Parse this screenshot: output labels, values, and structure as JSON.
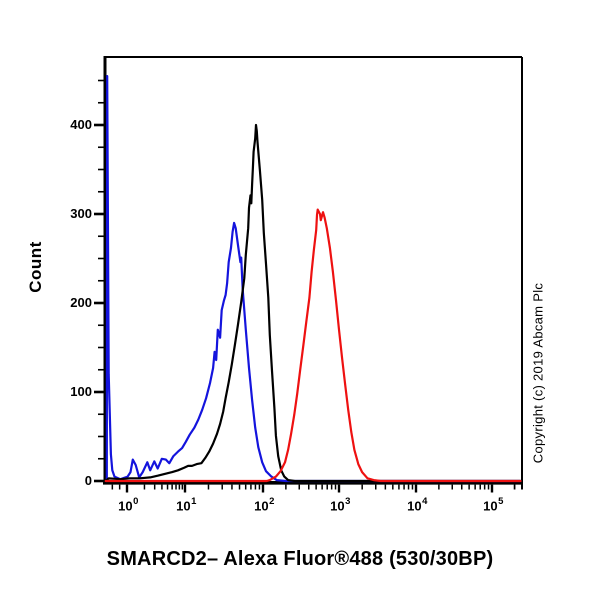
{
  "figure": {
    "copyright": "Copyright (c) 2019 Abcam Plc"
  },
  "chart_data": {
    "type": "line",
    "subtype": "flow-cytometry-histogram",
    "title": "SMARCD2– Alexa Fluor®488 (530/30BP)",
    "ylabel": "Count",
    "xscale": "log10",
    "xlim_log10": [
      -0.3,
      5.4
    ],
    "ylim": [
      0,
      476
    ],
    "grid": false,
    "legend": "none",
    "x_decade_exponents": [
      0,
      1,
      2,
      3,
      4,
      5
    ],
    "x_tick_base": "10",
    "y_major_ticks": [
      0,
      100,
      200,
      300,
      400
    ],
    "y_minor_step": 25,
    "y_minor_max": 450,
    "series": [
      {
        "name": "blue_curve",
        "color": "#1414dd",
        "points": [
          [
            -0.275,
            0
          ],
          [
            -0.27,
            455
          ],
          [
            -0.26,
            300
          ],
          [
            -0.25,
            120
          ],
          [
            -0.22,
            30
          ],
          [
            -0.2,
            12
          ],
          [
            -0.17,
            5
          ],
          [
            -0.09,
            2
          ],
          [
            0.01,
            5
          ],
          [
            0.06,
            10
          ],
          [
            0.1,
            24
          ],
          [
            0.15,
            18
          ],
          [
            0.21,
            4
          ],
          [
            0.27,
            10
          ],
          [
            0.35,
            21
          ],
          [
            0.4,
            12
          ],
          [
            0.47,
            22
          ],
          [
            0.53,
            14
          ],
          [
            0.6,
            25
          ],
          [
            0.67,
            24
          ],
          [
            0.73,
            20
          ],
          [
            0.8,
            28
          ],
          [
            0.88,
            33
          ],
          [
            0.95,
            37
          ],
          [
            1.01,
            44
          ],
          [
            1.06,
            52
          ],
          [
            1.12,
            60
          ],
          [
            1.17,
            69
          ],
          [
            1.22,
            80
          ],
          [
            1.27,
            93
          ],
          [
            1.32,
            110
          ],
          [
            1.36,
            127
          ],
          [
            1.38,
            145
          ],
          [
            1.4,
            136
          ],
          [
            1.42,
            170
          ],
          [
            1.45,
            161
          ],
          [
            1.47,
            192
          ],
          [
            1.5,
            203
          ],
          [
            1.52,
            209
          ],
          [
            1.54,
            222
          ],
          [
            1.56,
            246
          ],
          [
            1.59,
            262
          ],
          [
            1.61,
            280
          ],
          [
            1.63,
            290
          ],
          [
            1.65,
            284
          ],
          [
            1.68,
            265
          ],
          [
            1.71,
            246
          ],
          [
            1.72,
            251
          ],
          [
            1.74,
            215
          ],
          [
            1.78,
            170
          ],
          [
            1.82,
            127
          ],
          [
            1.86,
            91
          ],
          [
            1.9,
            60
          ],
          [
            1.94,
            38
          ],
          [
            1.99,
            21
          ],
          [
            2.04,
            11
          ],
          [
            2.11,
            5
          ],
          [
            2.18,
            1
          ],
          [
            2.3,
            0
          ],
          [
            5.38,
            0
          ]
        ]
      },
      {
        "name": "black_curve",
        "color": "#000000",
        "points": [
          [
            -0.29,
            0
          ],
          [
            -0.25,
            3
          ],
          [
            -0.09,
            2
          ],
          [
            0.05,
            3
          ],
          [
            0.22,
            3
          ],
          [
            0.4,
            4
          ],
          [
            0.53,
            6
          ],
          [
            0.65,
            8
          ],
          [
            0.78,
            10
          ],
          [
            0.88,
            12
          ],
          [
            0.99,
            15
          ],
          [
            1.04,
            17
          ],
          [
            1.09,
            17
          ],
          [
            1.15,
            19
          ],
          [
            1.21,
            20
          ],
          [
            1.26,
            26
          ],
          [
            1.31,
            33
          ],
          [
            1.36,
            42
          ],
          [
            1.41,
            53
          ],
          [
            1.45,
            64
          ],
          [
            1.49,
            78
          ],
          [
            1.52,
            93
          ],
          [
            1.56,
            111
          ],
          [
            1.6,
            131
          ],
          [
            1.64,
            153
          ],
          [
            1.68,
            176
          ],
          [
            1.72,
            201
          ],
          [
            1.76,
            228
          ],
          [
            1.78,
            254
          ],
          [
            1.81,
            284
          ],
          [
            1.82,
            307
          ],
          [
            1.84,
            321
          ],
          [
            1.85,
            312
          ],
          [
            1.86,
            333
          ],
          [
            1.87,
            352
          ],
          [
            1.88,
            370
          ],
          [
            1.9,
            385
          ],
          [
            1.91,
            400
          ],
          [
            1.92,
            393
          ],
          [
            1.93,
            381
          ],
          [
            1.96,
            349
          ],
          [
            1.99,
            316
          ],
          [
            2.01,
            279
          ],
          [
            2.04,
            244
          ],
          [
            2.07,
            206
          ],
          [
            2.09,
            164
          ],
          [
            2.12,
            122
          ],
          [
            2.15,
            82
          ],
          [
            2.17,
            51
          ],
          [
            2.2,
            28
          ],
          [
            2.24,
            12
          ],
          [
            2.28,
            5
          ],
          [
            2.33,
            1
          ],
          [
            2.42,
            0
          ],
          [
            5.38,
            0
          ]
        ]
      },
      {
        "name": "red_curve",
        "color": "#ee1111",
        "points": [
          [
            -0.29,
            0
          ],
          [
            2.05,
            0
          ],
          [
            2.09,
            1
          ],
          [
            2.17,
            5
          ],
          [
            2.23,
            11
          ],
          [
            2.29,
            21
          ],
          [
            2.33,
            35
          ],
          [
            2.37,
            53
          ],
          [
            2.41,
            74
          ],
          [
            2.45,
            98
          ],
          [
            2.49,
            125
          ],
          [
            2.53,
            152
          ],
          [
            2.57,
            179
          ],
          [
            2.61,
            206
          ],
          [
            2.64,
            235
          ],
          [
            2.67,
            260
          ],
          [
            2.7,
            282
          ],
          [
            2.71,
            299
          ],
          [
            2.72,
            305
          ],
          [
            2.75,
            300
          ],
          [
            2.76,
            293
          ],
          [
            2.79,
            302
          ],
          [
            2.81,
            296
          ],
          [
            2.84,
            284
          ],
          [
            2.88,
            262
          ],
          [
            2.92,
            235
          ],
          [
            2.96,
            203
          ],
          [
            3.0,
            170
          ],
          [
            3.04,
            138
          ],
          [
            3.08,
            108
          ],
          [
            3.12,
            80
          ],
          [
            3.16,
            55
          ],
          [
            3.2,
            35
          ],
          [
            3.25,
            19
          ],
          [
            3.3,
            10
          ],
          [
            3.37,
            3
          ],
          [
            3.45,
            1
          ],
          [
            3.54,
            0
          ],
          [
            5.38,
            0
          ]
        ]
      }
    ]
  }
}
